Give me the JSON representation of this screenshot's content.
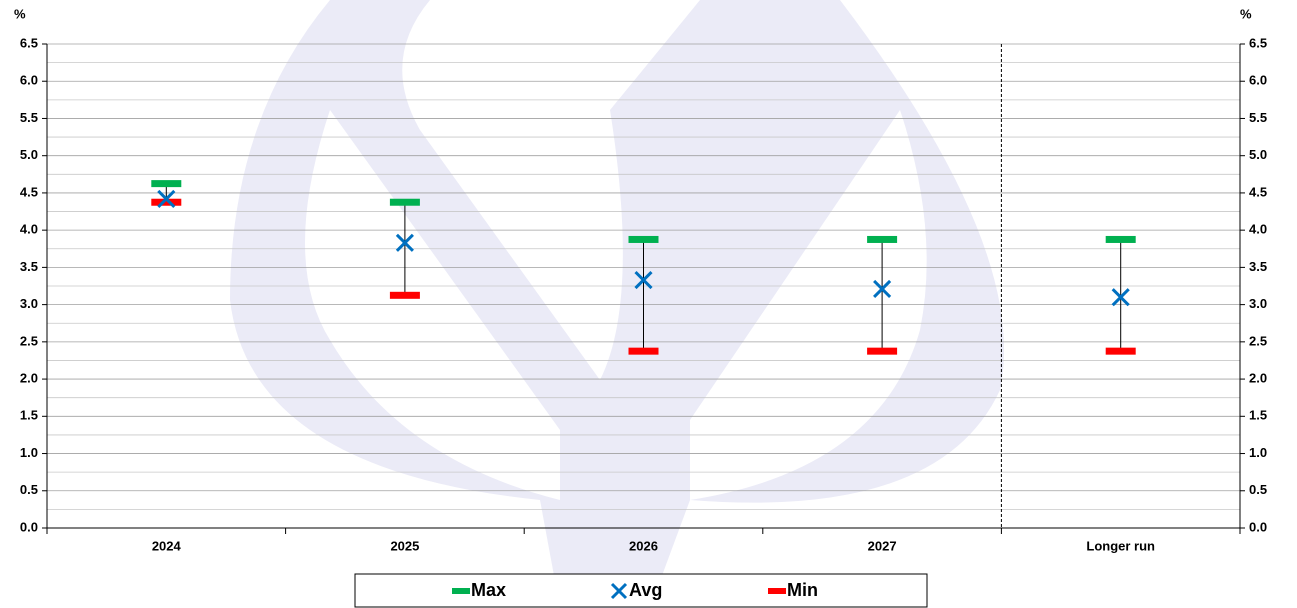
{
  "chart_data": {
    "type": "range",
    "y_label": "%",
    "y2_label": "%",
    "categories": [
      "2024",
      "2025",
      "2026",
      "2027",
      "Longer run"
    ],
    "series": [
      {
        "name": "Max",
        "color": "#00b050",
        "values": [
          4.625,
          4.375,
          3.875,
          3.875,
          3.875
        ]
      },
      {
        "name": "Avg",
        "color": "#0070c0",
        "values": [
          4.42,
          3.83,
          3.33,
          3.21,
          3.1
        ]
      },
      {
        "name": "Min",
        "color": "#ff0000",
        "values": [
          4.375,
          3.125,
          2.375,
          2.375,
          2.375
        ]
      }
    ],
    "ylim": [
      0,
      6.5
    ],
    "yticks": [
      {
        "value": 0,
        "label": "0.0"
      },
      0.5,
      {
        "value": 1,
        "label": "1.0"
      },
      1.5,
      {
        "value": 2,
        "label": "2.0"
      },
      2.5,
      {
        "value": 3,
        "label": "3.0"
      },
      3.5,
      {
        "value": 4,
        "label": "4.0"
      },
      4.5,
      {
        "value": 5,
        "label": "5.0"
      },
      5.5,
      {
        "value": 6,
        "label": "6.0"
      },
      6.5
    ],
    "y2lim": [
      0,
      6.5
    ],
    "y2ticks": [
      {
        "value": 0,
        "label": "0.0"
      },
      0.5,
      {
        "value": 1,
        "label": "1.0"
      },
      1.5,
      {
        "value": 2,
        "label": "2.0"
      },
      2.5,
      {
        "value": 3,
        "label": "3.0"
      },
      3.5,
      {
        "value": 4,
        "label": "4.0"
      },
      4.5,
      {
        "value": 5,
        "label": "5.0"
      },
      5.5,
      {
        "value": 6,
        "label": "6.0"
      },
      6.5
    ],
    "yminor": [
      0.25,
      0.75,
      1.25,
      1.75,
      2.25,
      2.75,
      3.25,
      3.75,
      4.25,
      4.75,
      5.25,
      5.75,
      6.25
    ],
    "grid": true
  }
}
